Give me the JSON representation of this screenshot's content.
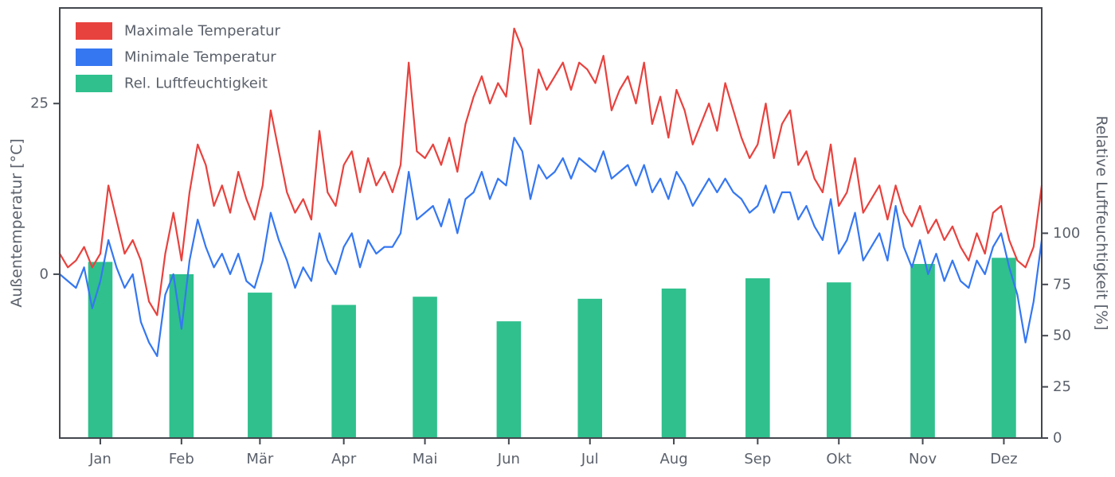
{
  "figure": {
    "background": "#ffffff",
    "text_color": "#5b616b",
    "spine_color": "#43474e"
  },
  "chart_data": {
    "type": "composite",
    "title": "",
    "left_axis": {
      "label": "Außentemperatur [°C]",
      "ticks": [
        0,
        25
      ],
      "ylim": [
        -24,
        39
      ]
    },
    "right_axis": {
      "label": "Relative Luftfeuchtigkeit [%]",
      "ticks": [
        0,
        25,
        50,
        75,
        100
      ],
      "ylim": [
        0,
        210
      ]
    },
    "x_axis": {
      "tick_labels": [
        "Jan",
        "Feb",
        "Mär",
        "Apr",
        "Mai",
        "Jun",
        "Jul",
        "Aug",
        "Sep",
        "Okt",
        "Nov",
        "Dez"
      ],
      "tick_days": [
        15,
        45,
        74,
        105,
        135,
        166,
        196,
        227,
        258,
        288,
        319,
        349
      ],
      "xlim": [
        0,
        363
      ]
    },
    "legend": [
      {
        "label": "Maximale Temperatur",
        "color": "#e8423e"
      },
      {
        "label": "Minimale Temperatur",
        "color": "#3577f1"
      },
      {
        "label": "Rel. Luftfeuchtigkeit",
        "color": "#2fc08d"
      }
    ],
    "series": [
      {
        "name": "Maximale Temperatur",
        "type": "line",
        "color": "#e8423e",
        "x_start_day": 0,
        "x_step_days": 3,
        "values": [
          3,
          1,
          2,
          4,
          1,
          3,
          13,
          8,
          3,
          5,
          2,
          -4,
          -6,
          3,
          9,
          2,
          12,
          19,
          16,
          10,
          13,
          9,
          15,
          11,
          8,
          13,
          24,
          18,
          12,
          9,
          11,
          8,
          21,
          12,
          10,
          16,
          18,
          12,
          17,
          13,
          15,
          12,
          16,
          31,
          18,
          17,
          19,
          16,
          20,
          15,
          22,
          26,
          29,
          25,
          28,
          26,
          36,
          33,
          22,
          30,
          27,
          29,
          31,
          27,
          31,
          30,
          28,
          32,
          24,
          27,
          29,
          25,
          31,
          22,
          26,
          20,
          27,
          24,
          19,
          22,
          25,
          21,
          28,
          24,
          20,
          17,
          19,
          25,
          17,
          22,
          24,
          16,
          18,
          14,
          12,
          19,
          10,
          12,
          17,
          9,
          11,
          13,
          8,
          13,
          9,
          7,
          10,
          6,
          8,
          5,
          7,
          4,
          2,
          6,
          3,
          9,
          10,
          5,
          2,
          1,
          4,
          13
        ]
      },
      {
        "name": "Minimale Temperatur",
        "type": "line",
        "color": "#3577f1",
        "x_start_day": 0,
        "x_step_days": 3,
        "values": [
          0,
          -1,
          -2,
          1,
          -5,
          -1,
          5,
          1,
          -2,
          0,
          -7,
          -10,
          -12,
          -3,
          0,
          -8,
          2,
          8,
          4,
          1,
          3,
          0,
          3,
          -1,
          -2,
          2,
          9,
          5,
          2,
          -2,
          1,
          -1,
          6,
          2,
          0,
          4,
          6,
          1,
          5,
          3,
          4,
          4,
          6,
          15,
          8,
          9,
          10,
          7,
          11,
          6,
          11,
          12,
          15,
          11,
          14,
          13,
          20,
          18,
          11,
          16,
          14,
          15,
          17,
          14,
          17,
          16,
          15,
          18,
          14,
          15,
          16,
          13,
          16,
          12,
          14,
          11,
          15,
          13,
          10,
          12,
          14,
          12,
          14,
          12,
          11,
          9,
          10,
          13,
          9,
          12,
          12,
          8,
          10,
          7,
          5,
          11,
          3,
          5,
          9,
          2,
          4,
          6,
          2,
          10,
          4,
          1,
          5,
          0,
          3,
          -1,
          2,
          -1,
          -2,
          2,
          0,
          4,
          6,
          1,
          -3,
          -10,
          -4,
          5
        ]
      }
    ],
    "bars": {
      "name": "Rel. Luftfeuchtigkeit",
      "type": "bar",
      "color": "#2fc08d",
      "categories": [
        "Jan",
        "Feb",
        "Mär",
        "Apr",
        "Mai",
        "Jun",
        "Jul",
        "Aug",
        "Sep",
        "Okt",
        "Nov",
        "Dez"
      ],
      "center_days": [
        15,
        45,
        74,
        105,
        135,
        166,
        196,
        227,
        258,
        288,
        319,
        349
      ],
      "values_percent": [
        86,
        80,
        71,
        65,
        69,
        57,
        68,
        73,
        78,
        76,
        85,
        88
      ],
      "bar_width_days": 9
    }
  }
}
